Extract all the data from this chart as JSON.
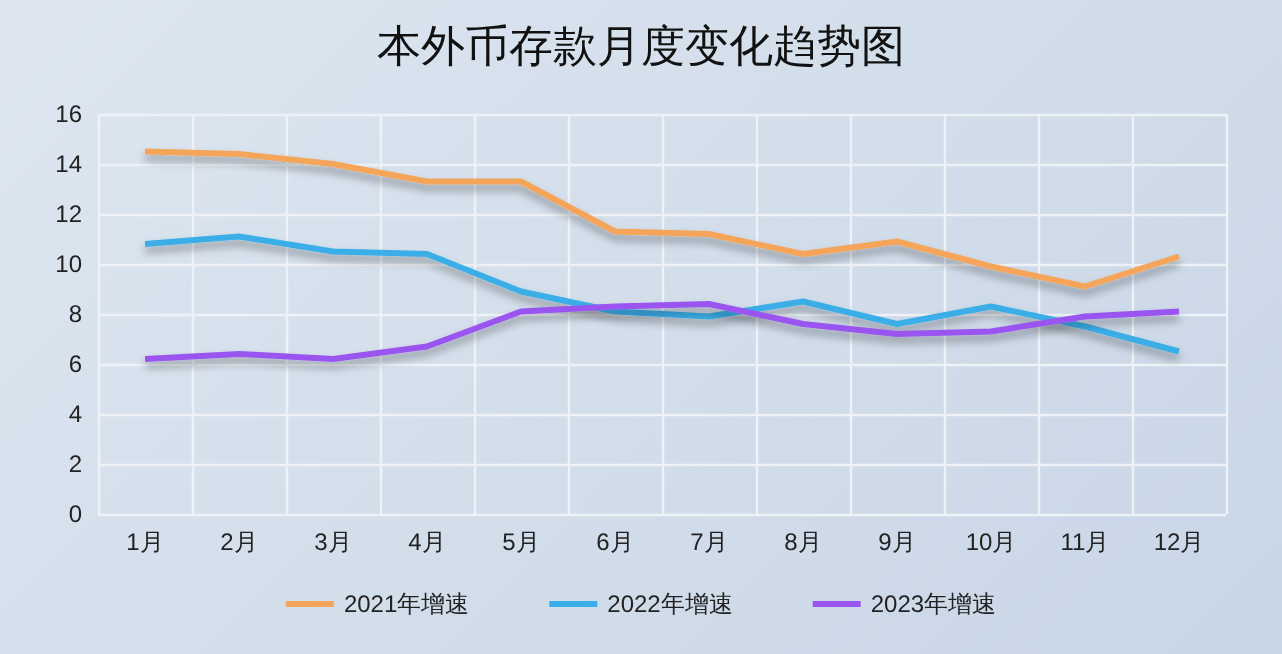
{
  "chart_data": {
    "type": "line",
    "title": "本外币存款月度变化趋势图",
    "categories": [
      "1月",
      "2月",
      "3月",
      "4月",
      "5月",
      "6月",
      "7月",
      "8月",
      "9月",
      "10月",
      "11月",
      "12月"
    ],
    "series": [
      {
        "name": "2021年增速",
        "color": "#f4a55a",
        "values": [
          14.5,
          14.4,
          14.0,
          13.3,
          13.3,
          11.3,
          11.2,
          10.4,
          10.9,
          9.9,
          9.1,
          10.3
        ]
      },
      {
        "name": "2022年增速",
        "color": "#3aaee8",
        "values": [
          10.8,
          11.1,
          10.5,
          10.4,
          8.9,
          8.1,
          7.9,
          8.5,
          7.6,
          8.3,
          7.5,
          6.5
        ]
      },
      {
        "name": "2023年增速",
        "color": "#9a55f0",
        "values": [
          6.2,
          6.4,
          6.2,
          6.7,
          8.1,
          8.3,
          8.4,
          7.6,
          7.2,
          7.3,
          7.9,
          8.1
        ]
      }
    ],
    "ylim": [
      0,
      16
    ],
    "yticks": [
      0,
      2,
      4,
      6,
      8,
      10,
      12,
      14,
      16
    ],
    "grid": true,
    "legend": "bottom",
    "marker": "none",
    "line_style": "solid"
  }
}
